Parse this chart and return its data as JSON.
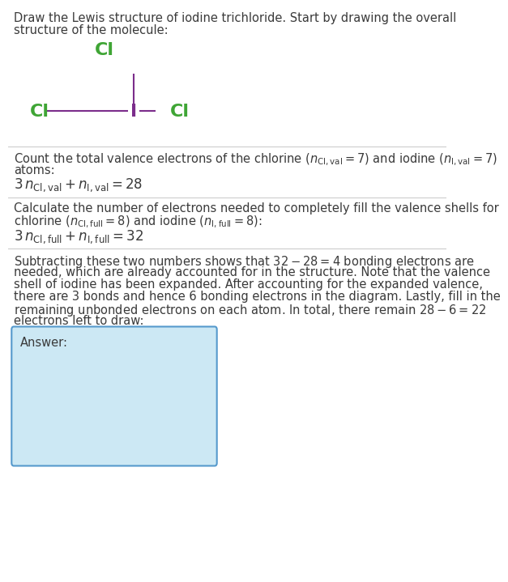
{
  "title_text": "Draw the Lewis structure of iodine trichloride. Start by drawing the overall\nstructure of the molecule:",
  "section1_line1": "Count the total valence electrons of the chlorine ($n_{\\mathrm{Cl,val}} = 7$) and iodine ($n_{\\mathrm{I,val}} = 7$)",
  "section1_line2": "atoms:",
  "section1_eq": "$3\\,n_{\\mathrm{Cl,val}} + n_{\\mathrm{I,val}} = 28$",
  "section2_line1": "Calculate the number of electrons needed to completely fill the valence shells for",
  "section2_line2": "chlorine ($n_{\\mathrm{Cl,full}} = 8$) and iodine ($n_{\\mathrm{I,full}} = 8$):",
  "section2_eq": "$3\\,n_{\\mathrm{Cl,full}} + n_{\\mathrm{I,full}} = 32$",
  "section3_text": "Subtracting these two numbers shows that $32 - 28 = 4$ bonding electrons are\nneeded, which are already accounted for in the structure. Note that the valence\nshell of iodine has been expanded. After accounting for the expanded valence,\nthere are 3 bonds and hence 6 bonding electrons in the diagram. Lastly, fill in the\nremaining unbonded electrons on each atom. In total, there remain $28 - 6 = 22$\nelectrons left to draw:",
  "answer_label": "Answer:",
  "cl_color": "#3fa535",
  "i_color": "#7b2d8b",
  "bond_color": "#7b2d8b",
  "text_color": "#3a3a3a",
  "bg_color": "#ffffff",
  "answer_bg": "#cce8f4",
  "answer_border": "#5599cc"
}
